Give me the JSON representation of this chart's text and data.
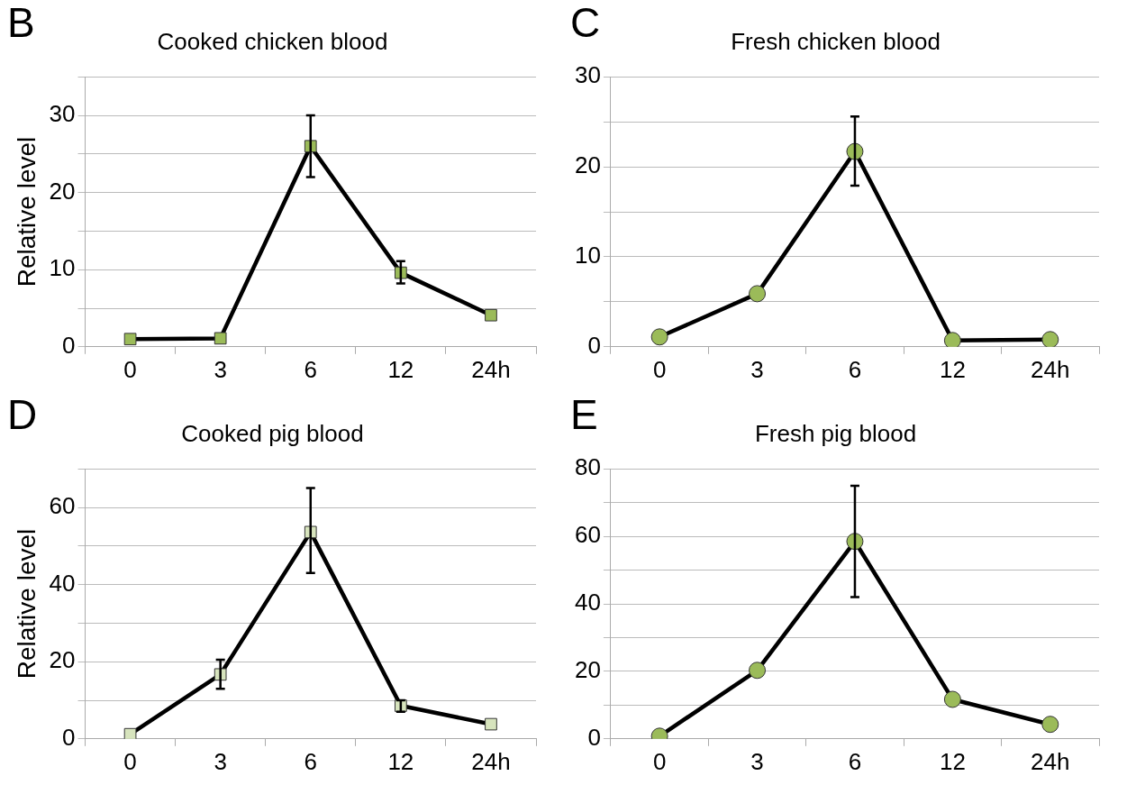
{
  "chart_data": [
    {
      "type": "line",
      "title": "Cooked chicken blood",
      "ylabel": "Relative level",
      "annotations": [
        "B"
      ],
      "categories": [
        "0",
        "3",
        "6",
        "12",
        "24h"
      ],
      "series": [
        {
          "color": "#9bbb59",
          "values": [
            1,
            1.1,
            26,
            9.6,
            4.1
          ],
          "errors": [
            null,
            null,
            [
              22,
              30
            ],
            [
              8.2,
              11.1
            ],
            null
          ]
        }
      ],
      "ylim": [
        0,
        35
      ],
      "yticks": [
        0,
        {
          "value": 5,
          "label": null
        },
        10,
        {
          "value": 15,
          "label": null
        },
        20,
        {
          "value": 25,
          "label": null
        },
        30,
        {
          "value": 35,
          "label": null
        }
      ],
      "grid": "y",
      "marker": "square",
      "line_style": "solid",
      "legend": false
    },
    {
      "type": "line",
      "title": "Fresh chicken blood",
      "annotations": [
        "C"
      ],
      "categories": [
        "0",
        "3",
        "6",
        "12",
        "24h"
      ],
      "series": [
        {
          "color": "#9bbb59",
          "values": [
            1.1,
            5.9,
            21.7,
            0.7,
            0.8
          ],
          "errors": [
            null,
            null,
            [
              17.9,
              25.6
            ],
            null,
            null
          ]
        }
      ],
      "ylim": [
        0,
        30
      ],
      "yticks": [
        0,
        {
          "value": 5,
          "label": null
        },
        10,
        {
          "value": 15,
          "label": null
        },
        20,
        {
          "value": 25,
          "label": null
        },
        30
      ],
      "grid": "y",
      "marker": "circle",
      "line_style": "solid",
      "legend": false
    },
    {
      "type": "line",
      "title": "Cooked pig blood",
      "ylabel": "Relative level",
      "annotations": [
        "D"
      ],
      "categories": [
        "0",
        "3",
        "6",
        "12",
        "24h"
      ],
      "series": [
        {
          "color": "#d7e4bd",
          "values": [
            1.2,
            16.7,
            53.6,
            8.6,
            3.8
          ],
          "errors": [
            null,
            [
              13,
              20.5
            ],
            [
              43,
              65
            ],
            [
              7,
              10
            ],
            null
          ]
        }
      ],
      "ylim": [
        0,
        70
      ],
      "yticks": [
        0,
        {
          "value": 10,
          "label": null
        },
        20,
        {
          "value": 30,
          "label": null
        },
        40,
        {
          "value": 50,
          "label": null
        },
        60,
        {
          "value": 70,
          "label": null
        }
      ],
      "grid": "y",
      "marker": "square",
      "line_style": "solid",
      "legend": false
    },
    {
      "type": "line",
      "title": "Fresh pig blood",
      "annotations": [
        "E"
      ],
      "categories": [
        "0",
        "3",
        "6",
        "12",
        "24h"
      ],
      "series": [
        {
          "color": "#9bbb59",
          "values": [
            0.8,
            20.3,
            58.5,
            11.7,
            4.3
          ],
          "errors": [
            null,
            null,
            [
              42,
              75
            ],
            null,
            null
          ]
        }
      ],
      "ylim": [
        0,
        80
      ],
      "yticks": [
        0,
        {
          "value": 10,
          "label": null
        },
        20,
        {
          "value": 30,
          "label": null
        },
        40,
        {
          "value": 50,
          "label": null
        },
        60,
        {
          "value": 70,
          "label": null
        },
        80
      ],
      "grid": "y",
      "marker": "circle",
      "line_style": "solid",
      "legend": false
    }
  ]
}
